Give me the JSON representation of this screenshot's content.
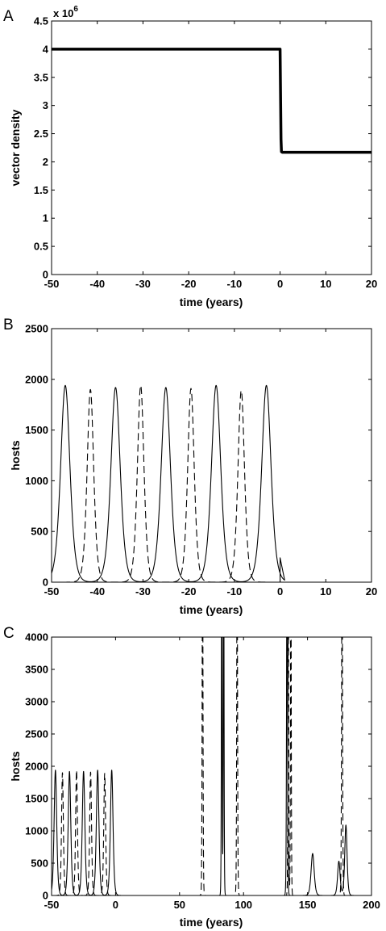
{
  "chart_data": [
    {
      "type": "line",
      "panel_label": "A",
      "xlabel": "time (years)",
      "ylabel": "vector density",
      "y_multiplier_label": "x 10",
      "y_multiplier_exponent": "6",
      "xlim": [
        -50,
        20
      ],
      "ylim": [
        0,
        4.5
      ],
      "xticks": [
        -50,
        -40,
        -30,
        -20,
        -10,
        0,
        10,
        20
      ],
      "yticks": [
        0,
        0.5,
        1,
        1.5,
        2,
        2.5,
        3,
        3.5,
        4,
        4.5
      ],
      "ytick_labels": [
        "0",
        "0.5",
        "1",
        "1.5",
        "2",
        "2.5",
        "3",
        "3.5",
        "4",
        "4.5"
      ],
      "series": [
        {
          "style": "thick-solid",
          "x": [
            -50,
            0,
            0.1,
            0.2,
            0.3,
            0.5,
            20
          ],
          "y": [
            4,
            4,
            3.2,
            2.4,
            2.18,
            2.17,
            2.17
          ]
        }
      ]
    },
    {
      "type": "line",
      "panel_label": "B",
      "xlabel": "time (years)",
      "ylabel": "hosts",
      "xlim": [
        -50,
        20
      ],
      "ylim": [
        0,
        2500
      ],
      "xticks": [
        -50,
        -40,
        -30,
        -20,
        -10,
        0,
        10,
        20
      ],
      "yticks": [
        0,
        500,
        1000,
        1500,
        2000,
        2500
      ],
      "ytick_labels": [
        "0",
        "500",
        "1000",
        "1500",
        "2000",
        "2500"
      ],
      "series": [
        {
          "style": "solid",
          "peaks": [
            {
              "t": -47,
              "h": 1940
            },
            {
              "t": -36,
              "h": 1920
            },
            {
              "t": -25,
              "h": 1920
            },
            {
              "t": -14,
              "h": 1940
            },
            {
              "t": -3,
              "h": 1940
            }
          ],
          "width": 1.35,
          "t_end": 1.0,
          "tail": {
            "x": [
              0,
              0,
              0.3
            ],
            "y": [
              240,
              0,
              0
            ]
          }
        },
        {
          "style": "dashed",
          "peaks": [
            {
              "t": -41.5,
              "h": 1900
            },
            {
              "t": -30.5,
              "h": 1940
            },
            {
              "t": -19.5,
              "h": 1910
            },
            {
              "t": -8.5,
              "h": 1890
            }
          ],
          "width": 0.95,
          "t_end": -0.5
        }
      ]
    },
    {
      "type": "line",
      "panel_label": "C",
      "xlabel": "time (years)",
      "ylabel": "hosts",
      "xlim": [
        -50,
        200
      ],
      "ylim": [
        0,
        4000
      ],
      "xticks": [
        -50,
        0,
        50,
        100,
        150,
        200
      ],
      "yticks": [
        0,
        500,
        1000,
        1500,
        2000,
        2500,
        3000,
        3500,
        4000
      ],
      "ytick_labels": [
        "0",
        "500",
        "1000",
        "1500",
        "2000",
        "2500",
        "3000",
        "3500",
        "4000"
      ],
      "series": [
        {
          "style": "solid",
          "peaks": [
            {
              "t": -47,
              "h": 1940
            },
            {
              "t": -36,
              "h": 1920
            },
            {
              "t": -25,
              "h": 1920
            },
            {
              "t": -14,
              "h": 1940
            },
            {
              "t": -3,
              "h": 1940
            },
            {
              "t": 83,
              "h": 6000
            },
            {
              "t": 84.5,
              "h": 6000
            },
            {
              "t": 134,
              "h": 6000
            },
            {
              "t": 154,
              "h": 650
            },
            {
              "t": 174.5,
              "h": 530
            },
            {
              "t": 180,
              "h": 1090
            }
          ],
          "widths": [
            1.35,
            1.35,
            1.35,
            1.35,
            1.35,
            0.35,
            0.35,
            0.45,
            1.6,
            1.3,
            1.2
          ],
          "t_end": 200
        },
        {
          "style": "dashed",
          "peaks": [
            {
              "t": -41.5,
              "h": 1900
            },
            {
              "t": -30.5,
              "h": 1940
            },
            {
              "t": -19.5,
              "h": 1910
            },
            {
              "t": -8.5,
              "h": 1890
            },
            {
              "t": 68,
              "h": 6000
            },
            {
              "t": 95,
              "h": 6000
            },
            {
              "t": 135,
              "h": 6000
            },
            {
              "t": 137,
              "h": 6000
            },
            {
              "t": 177,
              "h": 6000
            }
          ],
          "widths": [
            0.95,
            0.95,
            0.95,
            0.95,
            0.4,
            0.4,
            0.35,
            0.35,
            0.45
          ],
          "t_end": 200
        }
      ]
    }
  ]
}
